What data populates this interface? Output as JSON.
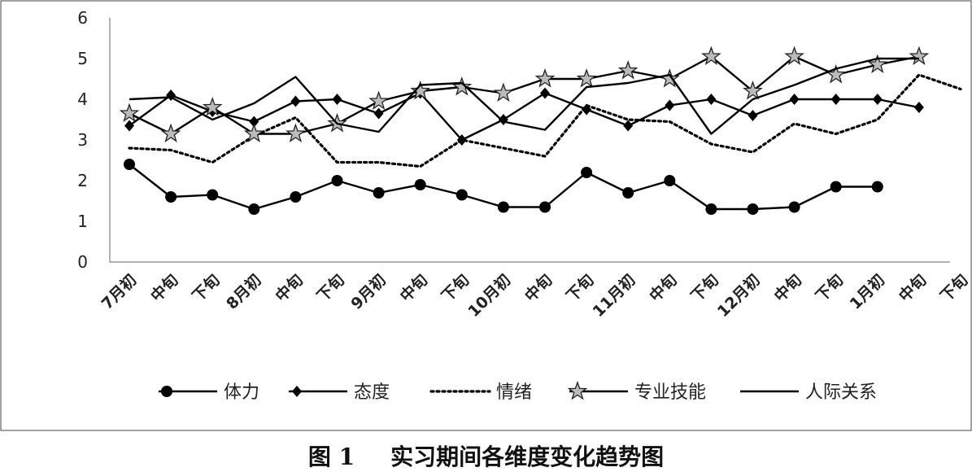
{
  "caption": {
    "number": "图 1",
    "text": "实习期间各维度变化趋势图"
  },
  "chart_data": {
    "type": "line",
    "title": "",
    "xlabel": "",
    "ylabel": "",
    "ylim": [
      0,
      6
    ],
    "yticks": [
      "0",
      "1",
      "2",
      "3",
      "4",
      "5",
      "6"
    ],
    "grid": false,
    "legend_position": "bottom",
    "categories": [
      "7月初",
      "中旬",
      "下旬",
      "8月初",
      "中旬",
      "下旬",
      "9月初",
      "中旬",
      "下旬",
      "10月初",
      "中旬",
      "下旬",
      "11月初",
      "中旬",
      "下旬",
      "12月初",
      "中旬",
      "下旬",
      "1月初",
      "中旬",
      "下旬"
    ],
    "series": [
      {
        "name": "体力",
        "style": "solid-circle",
        "color": "#000000",
        "values": [
          2.4,
          1.6,
          1.65,
          1.3,
          1.6,
          2.0,
          1.7,
          1.9,
          1.65,
          1.35,
          1.35,
          2.2,
          1.7,
          2.0,
          1.3,
          1.3,
          1.35,
          1.85,
          1.85,
          null,
          null
        ]
      },
      {
        "name": "态度",
        "style": "solid-diamond",
        "color": "#000000",
        "values": [
          3.35,
          4.1,
          3.7,
          3.45,
          3.95,
          4.0,
          3.65,
          4.15,
          3.0,
          3.5,
          4.15,
          3.75,
          3.35,
          3.85,
          4.0,
          3.6,
          4.0,
          4.0,
          4.0,
          3.8,
          null
        ]
      },
      {
        "name": "情绪",
        "style": "dotted",
        "color": "#000000",
        "values": [
          2.8,
          2.75,
          2.45,
          3.1,
          3.55,
          2.45,
          2.45,
          2.35,
          3.0,
          2.8,
          2.6,
          3.85,
          3.5,
          3.45,
          2.9,
          2.7,
          3.4,
          3.15,
          3.5,
          4.6,
          4.25
        ]
      },
      {
        "name": "专业技能",
        "style": "solid-star",
        "color": "#000000",
        "values": [
          3.65,
          3.15,
          3.8,
          3.15,
          3.15,
          3.4,
          3.95,
          4.2,
          4.3,
          4.15,
          4.5,
          4.5,
          4.7,
          4.5,
          5.05,
          4.2,
          5.05,
          4.6,
          4.85,
          5.05,
          null
        ]
      },
      {
        "name": "人际关系",
        "style": "solid",
        "color": "#000000",
        "values": [
          4.0,
          4.05,
          3.5,
          3.9,
          4.55,
          3.4,
          3.2,
          4.35,
          4.4,
          3.45,
          3.25,
          4.3,
          4.4,
          4.6,
          3.15,
          4.0,
          4.35,
          4.75,
          5.0,
          5.0,
          null
        ]
      }
    ]
  }
}
